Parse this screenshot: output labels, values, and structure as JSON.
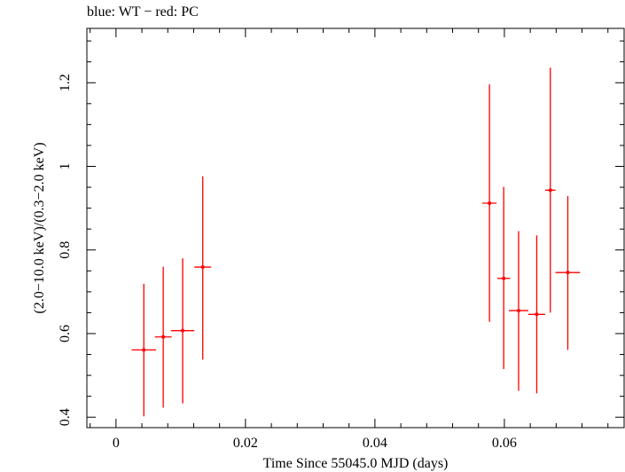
{
  "chart_data": {
    "type": "scatter",
    "title": "blue: WT − red: PC",
    "xlabel": "Time Since 55045.0 MJD (days)",
    "ylabel": "(2.0−10.0 keV)/(0.3−2.0 keV)",
    "xlim": [
      -0.0045,
      0.0785
    ],
    "ylim": [
      0.375,
      1.33
    ],
    "x_ticks": [
      {
        "value": 0,
        "label": "0"
      },
      {
        "value": 0.02,
        "label": "0.02"
      },
      {
        "value": 0.04,
        "label": "0.04"
      },
      {
        "value": 0.06,
        "label": "0.06"
      }
    ],
    "y_ticks": [
      {
        "value": 0.4,
        "label": "0.4"
      },
      {
        "value": 0.6,
        "label": "0.6"
      },
      {
        "value": 0.8,
        "label": "0.8"
      },
      {
        "value": 1.0,
        "label": "1"
      },
      {
        "value": 1.2,
        "label": "1.2"
      }
    ],
    "grid": false,
    "legend": "none",
    "series": [
      {
        "color": "#ff0000",
        "points": [
          {
            "x": 0.0043,
            "xerr": 0.0019,
            "y": 0.561,
            "ylo": 0.402,
            "yhi": 0.719
          },
          {
            "x": 0.0073,
            "xerr": 0.0013,
            "y": 0.592,
            "ylo": 0.423,
            "yhi": 0.76
          },
          {
            "x": 0.0103,
            "xerr": 0.0018,
            "y": 0.607,
            "ylo": 0.433,
            "yhi": 0.78
          },
          {
            "x": 0.0134,
            "xerr": 0.0013,
            "y": 0.759,
            "ylo": 0.538,
            "yhi": 0.976
          },
          {
            "x": 0.0577,
            "xerr": 0.0011,
            "y": 0.912,
            "ylo": 0.628,
            "yhi": 1.196
          },
          {
            "x": 0.0599,
            "xerr": 0.001,
            "y": 0.732,
            "ylo": 0.515,
            "yhi": 0.951
          },
          {
            "x": 0.0622,
            "xerr": 0.0015,
            "y": 0.655,
            "ylo": 0.463,
            "yhi": 0.845
          },
          {
            "x": 0.065,
            "xerr": 0.0013,
            "y": 0.646,
            "ylo": 0.457,
            "yhi": 0.835
          },
          {
            "x": 0.0671,
            "xerr": 0.0008,
            "y": 0.943,
            "ylo": 0.65,
            "yhi": 1.236
          },
          {
            "x": 0.0698,
            "xerr": 0.0019,
            "y": 0.746,
            "ylo": 0.561,
            "yhi": 0.929
          }
        ]
      }
    ]
  }
}
